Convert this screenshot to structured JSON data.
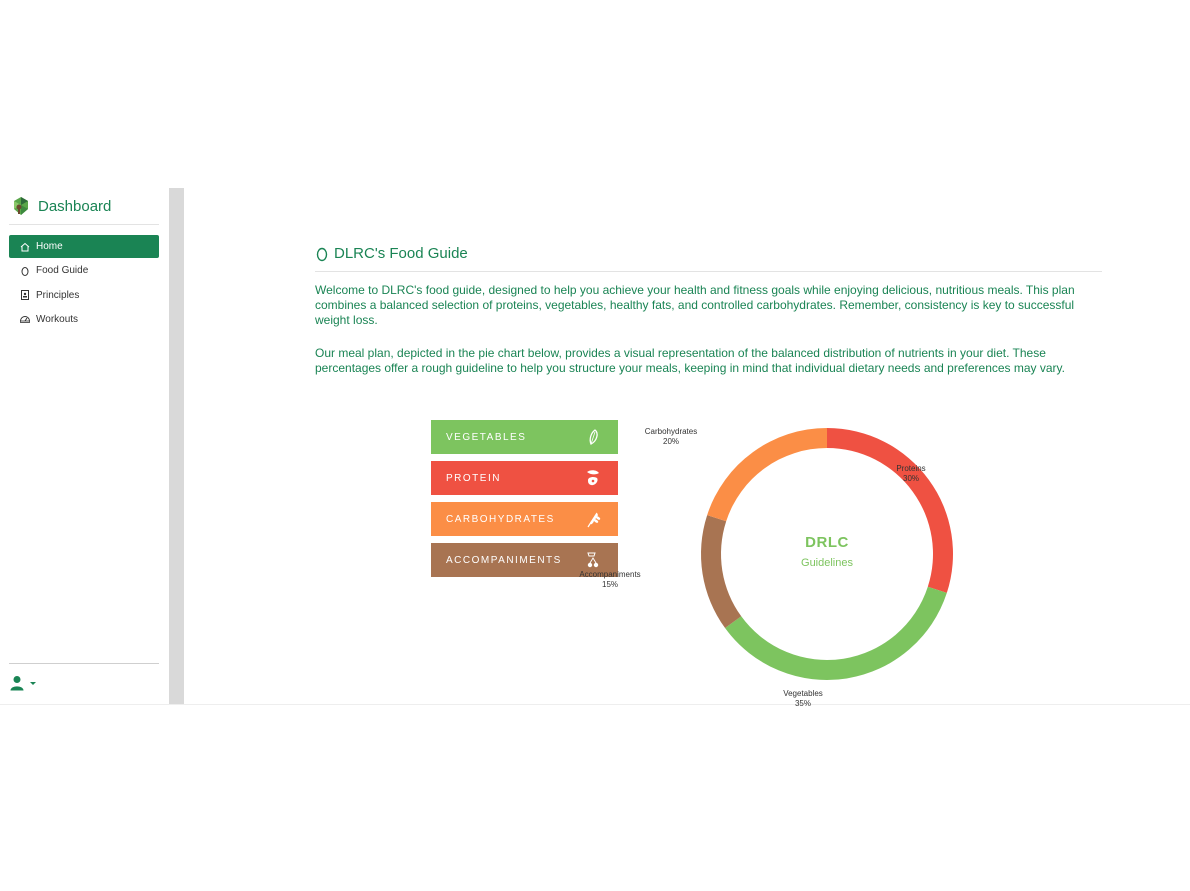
{
  "sidebar": {
    "brand_title": "Dashboard",
    "items": [
      {
        "label": "Home",
        "icon": "home-icon",
        "active": true
      },
      {
        "label": "Food Guide",
        "icon": "egg-icon"
      },
      {
        "label": "Principles",
        "icon": "id-card-icon"
      },
      {
        "label": "Workouts",
        "icon": "gauge-icon"
      }
    ]
  },
  "page": {
    "title": "DLRC's Food Guide",
    "intro": "Welcome to DLRC's food guide, designed to help you achieve your health and fitness goals while enjoying delicious, nutritious meals. This plan combines a balanced selection of proteins, vegetables, healthy fats, and controlled carbohydrates. Remember, consistency is key to successful weight loss.",
    "meal_plan": "Our meal plan, depicted in the pie chart below, provides a visual representation of the balanced distribution of nutrients in your diet. These percentages offer a rough guideline to help you structure your meals, keeping in mind that individual dietary needs and preferences may vary."
  },
  "legend": [
    {
      "label": "VEGETABLES",
      "color": "#7dc45f",
      "icon": "leaf-icon"
    },
    {
      "label": "PROTEIN",
      "color": "#ef5142",
      "icon": "meat-fish-icon"
    },
    {
      "label": "CARBOHYDRATES",
      "color": "#fb8e46",
      "icon": "wheat-icon"
    },
    {
      "label": "ACCOMPANIMENTS",
      "color": "#a87452",
      "icon": "cherries-icon"
    }
  ],
  "chart_data": {
    "type": "pie",
    "center_title": "DRLC",
    "center_subtitle": "Guidelines",
    "slices": [
      {
        "label": "Proteins",
        "value": 30,
        "display": "30%",
        "color": "#ef5142"
      },
      {
        "label": "Vegetables",
        "value": 35,
        "display": "35%",
        "color": "#7dc45f"
      },
      {
        "label": "Accompaniments",
        "value": 15,
        "display": "15%",
        "color": "#a87452"
      },
      {
        "label": "Carbohydrates",
        "value": 20,
        "display": "20%",
        "color": "#fb8e46"
      }
    ]
  }
}
